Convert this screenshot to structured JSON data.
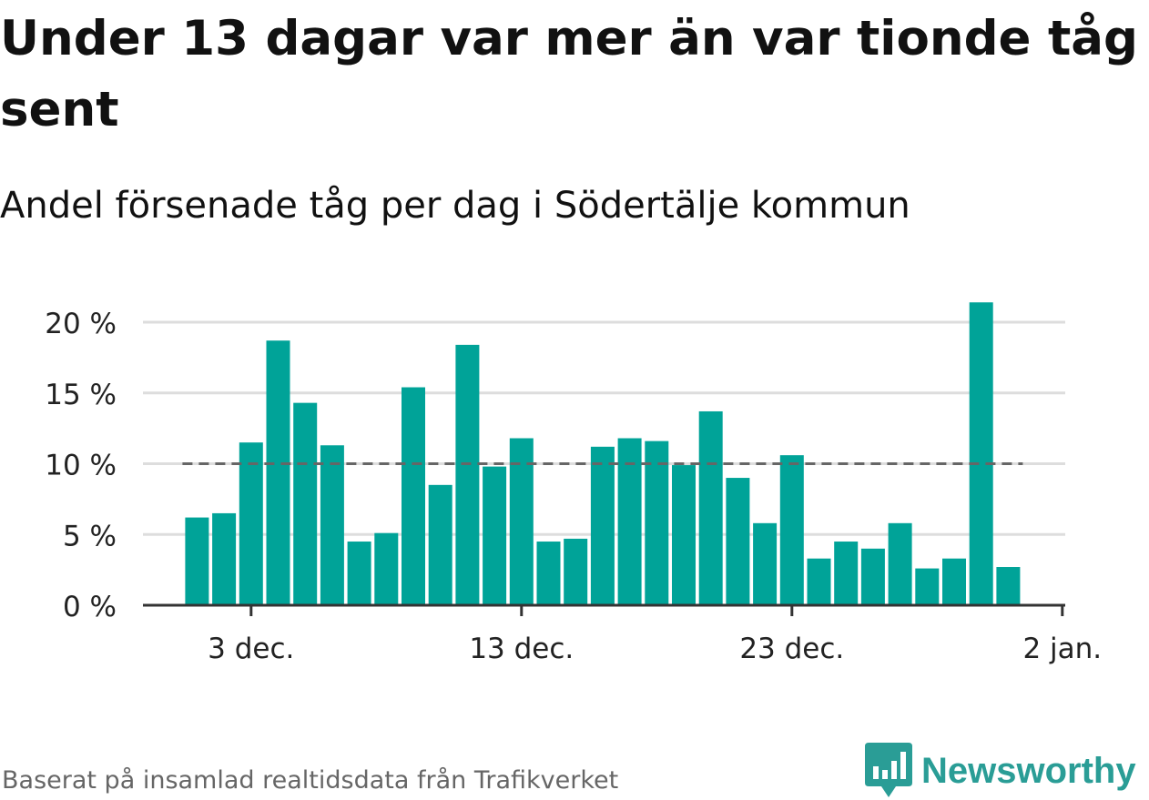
{
  "title": "Under 13 dagar var mer än var tionde tåg sent",
  "subtitle": "Andel försenade tåg per dag i Södertälje kommun",
  "source": "Baserat på insamlad realtidsdata från Trafikverket",
  "brand": {
    "name": "Newsworthy",
    "color": "#2a9d96",
    "icon": "newsworthy-chart-bubble-icon"
  },
  "colors": {
    "bar": "#00a398",
    "reference_line": "#666666",
    "grid": "#dddddd",
    "axis": "#333333"
  },
  "chart_data": {
    "type": "bar",
    "x": [
      "2023-12-01",
      "2023-12-02",
      "2023-12-03",
      "2023-12-04",
      "2023-12-05",
      "2023-12-06",
      "2023-12-07",
      "2023-12-08",
      "2023-12-09",
      "2023-12-10",
      "2023-12-11",
      "2023-12-12",
      "2023-12-13",
      "2023-12-14",
      "2023-12-15",
      "2023-12-16",
      "2023-12-17",
      "2023-12-18",
      "2023-12-19",
      "2023-12-20",
      "2023-12-21",
      "2023-12-22",
      "2023-12-23",
      "2023-12-24",
      "2023-12-25",
      "2023-12-26",
      "2023-12-27",
      "2023-12-28",
      "2023-12-29",
      "2023-12-30",
      "2023-12-31"
    ],
    "values": [
      6.2,
      6.5,
      11.5,
      18.7,
      14.3,
      11.3,
      4.5,
      5.1,
      15.4,
      8.5,
      18.4,
      9.8,
      11.8,
      4.5,
      4.7,
      11.2,
      11.8,
      11.6,
      9.9,
      13.7,
      9.0,
      5.8,
      10.6,
      3.3,
      4.5,
      4.0,
      5.8,
      2.6,
      3.3,
      21.4,
      2.7
    ],
    "unit": "%",
    "reference_line": 10,
    "ylim": [
      0,
      21.4
    ],
    "yticks": [
      {
        "value": 0,
        "label": "0 %"
      },
      {
        "value": 5,
        "label": "5 %"
      },
      {
        "value": 10,
        "label": "10 %"
      },
      {
        "value": 15,
        "label": "15 %"
      },
      {
        "value": 20,
        "label": "20 %"
      }
    ],
    "xticks": [
      {
        "value": "2023-12-03",
        "label": "3 dec."
      },
      {
        "value": "2023-12-13",
        "label": "13 dec."
      },
      {
        "value": "2023-12-23",
        "label": "23 dec."
      },
      {
        "value": "2024-01-02",
        "label": "2 jan."
      }
    ],
    "xlim": [
      "2023-11-29",
      "2024-01-02"
    ],
    "grid": true
  }
}
